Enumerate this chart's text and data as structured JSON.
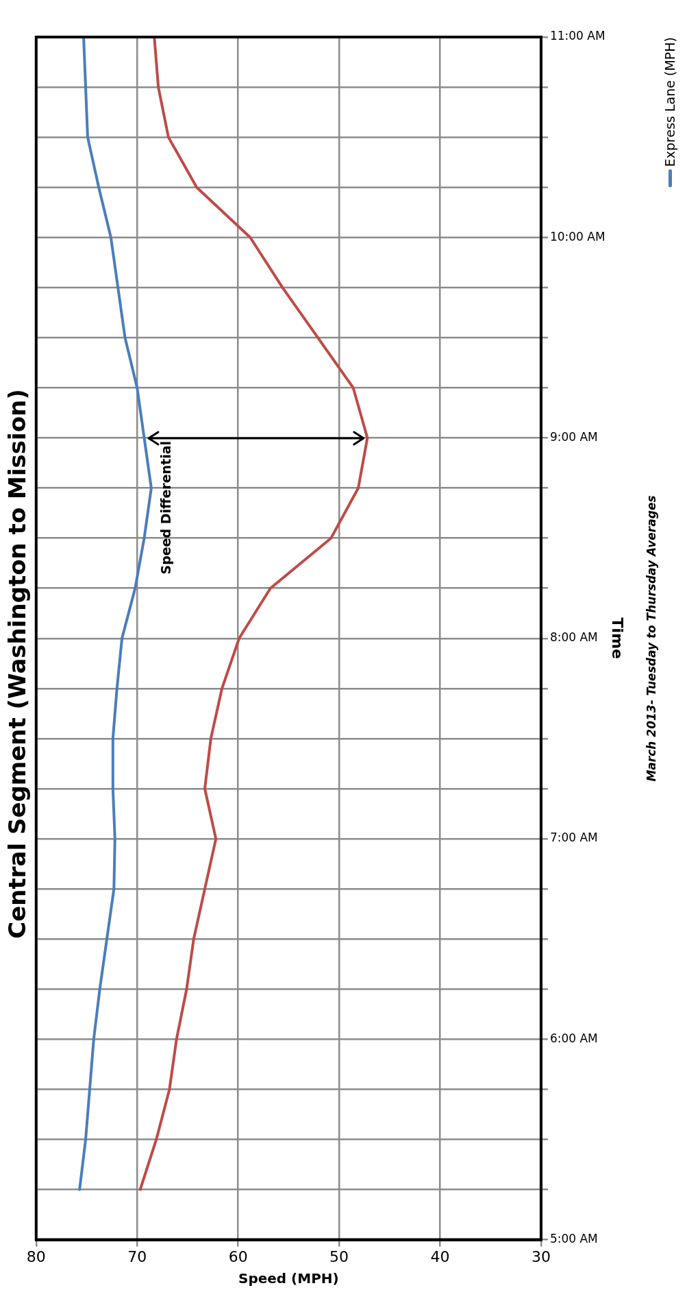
{
  "chart_data": {
    "type": "line",
    "title": "Central Segment (Washington to Mission)",
    "xlabel": "Speed (MPH)",
    "ylabel": "Time",
    "series": [
      {
        "name": "Express Lane (MPH)",
        "color": "#4a7ebb",
        "x": [
          75.7,
          75.1,
          74.7,
          74.3,
          73.7,
          73.0,
          72.3,
          72.2,
          72.4,
          72.4,
          72.0,
          71.5,
          70.2,
          69.3,
          68.6,
          69.3,
          70.0,
          71.2,
          71.9,
          72.6,
          73.8,
          74.9,
          75.1,
          75.3
        ],
        "values": [
          5.25,
          5.5,
          5.75,
          6,
          6.25,
          6.5,
          6.75,
          7,
          7.25,
          7.5,
          7.75,
          8,
          8.25,
          8.5,
          8.75,
          9,
          9.25,
          9.5,
          9.75,
          10,
          10.25,
          10.5,
          10.75,
          11
        ]
      },
      {
        "color": "#be4b48",
        "x": [
          69.7,
          68.1,
          66.8,
          66.1,
          65.1,
          64.4,
          63.3,
          62.2,
          63.3,
          62.7,
          61.6,
          59.9,
          56.8,
          50.8,
          48.1,
          47.2,
          48.6,
          52.1,
          55.6,
          58.8,
          64.1,
          66.9,
          67.9,
          68.3
        ],
        "values": [
          5.25,
          5.5,
          5.75,
          6,
          6.25,
          6.5,
          6.75,
          7,
          7.25,
          7.5,
          7.75,
          8,
          8.25,
          8.5,
          8.75,
          9,
          9.25,
          9.5,
          9.75,
          10,
          10.25,
          10.5,
          10.75,
          11
        ]
      }
    ],
    "xlim": [
      80,
      30
    ],
    "xticks": [
      30,
      40,
      50,
      60,
      70,
      80
    ],
    "ylim": [
      5,
      11
    ],
    "yticks": [
      {
        "value": 5,
        "label": "5:00 AM"
      },
      {
        "value": 5.25,
        "label": null
      },
      {
        "value": 5.5,
        "label": null
      },
      {
        "value": 5.75,
        "label": null
      },
      {
        "value": 6,
        "label": "6:00 AM"
      },
      {
        "value": 6.25,
        "label": null
      },
      {
        "value": 6.5,
        "label": null
      },
      {
        "value": 6.75,
        "label": null
      },
      {
        "value": 7,
        "label": "7:00 AM"
      },
      {
        "value": 7.25,
        "label": null
      },
      {
        "value": 7.5,
        "label": null
      },
      {
        "value": 7.75,
        "label": null
      },
      {
        "value": 8,
        "label": "8:00 AM"
      },
      {
        "value": 8.25,
        "label": null
      },
      {
        "value": 8.5,
        "label": null
      },
      {
        "value": 8.75,
        "label": null
      },
      {
        "value": 9,
        "label": "9:00 AM"
      },
      {
        "value": 9.25,
        "label": null
      },
      {
        "value": 9.5,
        "label": null
      },
      {
        "value": 9.75,
        "label": null
      },
      {
        "value": 10,
        "label": "10:00 AM"
      },
      {
        "value": 10.25,
        "label": null
      },
      {
        "value": 10.5,
        "label": null
      },
      {
        "value": 10.75,
        "label": null
      },
      {
        "value": 11,
        "label": "11:00 AM"
      }
    ],
    "grid": true,
    "legend": "right",
    "marker": "none",
    "line_style": "solid",
    "annotations": [
      "Speed Differential",
      "March 2013- Tuesday to Thursday Averages"
    ]
  }
}
